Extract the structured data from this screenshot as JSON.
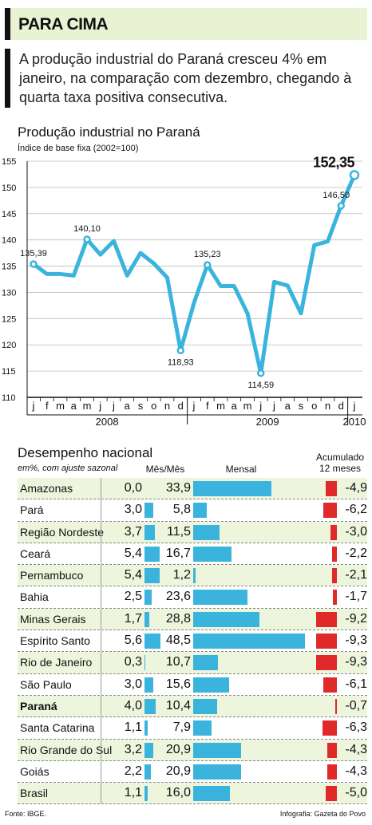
{
  "header": {
    "title": "PARA CIMA"
  },
  "intro": "A produção industrial do Paraná cresceu 4% em janeiro, na comparação com dezembro, chegando à quarta taxa positiva consecutiva.",
  "line_section": {
    "title": "Produção industrial no Paraná",
    "subtitle": "Índice de base fixa (2002=100)"
  },
  "colors": {
    "line": "#3ab4dd",
    "positive_bar": "#3ab4dd",
    "negative_bar": "#e02a2a",
    "header_bg": "#e9f2d2",
    "row_bg": "#eef5dd"
  },
  "chart_data": [
    {
      "type": "line",
      "title": "Produção industrial no Paraná",
      "ylabel": "Índice de base fixa (2002=100)",
      "ylim": [
        110,
        155
      ],
      "yticks": [
        110,
        115,
        120,
        125,
        130,
        135,
        140,
        145,
        150,
        155
      ],
      "grid": "horizontal",
      "x": [
        "j",
        "f",
        "m",
        "a",
        "m",
        "j",
        "j",
        "a",
        "s",
        "o",
        "n",
        "d",
        "j",
        "f",
        "m",
        "a",
        "m",
        "j",
        "j",
        "a",
        "s",
        "o",
        "n",
        "d",
        "j"
      ],
      "year_labels": [
        {
          "label": "2008",
          "index": 5.5
        },
        {
          "label": "2009",
          "index": 17.5
        },
        {
          "label": "2010",
          "index": 24
        }
      ],
      "values": [
        135.39,
        133.5,
        133.5,
        133.2,
        140.1,
        137.2,
        139.8,
        133.2,
        137.5,
        135.5,
        132.8,
        118.93,
        128.0,
        135.23,
        131.2,
        131.2,
        126.0,
        114.59,
        132.0,
        131.3,
        126.0,
        139.0,
        139.7,
        146.5,
        152.35
      ],
      "labels": [
        {
          "index": 0,
          "text": "135,39"
        },
        {
          "index": 4,
          "text": "140,10"
        },
        {
          "index": 11,
          "text": "118,93"
        },
        {
          "index": 13,
          "text": "135,23"
        },
        {
          "index": 17,
          "text": "114,59"
        },
        {
          "index": 23,
          "text": "146,50"
        },
        {
          "index": 24,
          "text": "152,35",
          "bold": true
        }
      ]
    },
    {
      "type": "table",
      "title": "Desempenho nacional",
      "subtitle": "em%, com ajuste sazonal",
      "columns": [
        "Mês/Mês",
        "Mensal",
        "Acumulado 12 meses"
      ],
      "rows": [
        {
          "state": "Amazonas",
          "mm": 0.0,
          "mm_label": "0,0",
          "mensal": 33.9,
          "mensal_label": "33,9",
          "acum": -4.9,
          "acum_label": "-4,9"
        },
        {
          "state": "Pará",
          "mm": 3.0,
          "mm_label": "3,0",
          "mensal": 5.8,
          "mensal_label": "5,8",
          "acum": -6.2,
          "acum_label": "-6,2"
        },
        {
          "state": "Região Nordeste",
          "mm": 3.7,
          "mm_label": "3,7",
          "mensal": 11.5,
          "mensal_label": "11,5",
          "acum": -3.0,
          "acum_label": "-3,0"
        },
        {
          "state": "Ceará",
          "mm": 5.4,
          "mm_label": "5,4",
          "mensal": 16.7,
          "mensal_label": "16,7",
          "acum": -2.2,
          "acum_label": "-2,2"
        },
        {
          "state": "Pernambuco",
          "mm": 5.4,
          "mm_label": "5,4",
          "mensal": 1.2,
          "mensal_label": "1,2",
          "acum": -2.1,
          "acum_label": "-2,1"
        },
        {
          "state": "Bahia",
          "mm": 2.5,
          "mm_label": "2,5",
          "mensal": 23.6,
          "mensal_label": "23,6",
          "acum": -1.7,
          "acum_label": "-1,7"
        },
        {
          "state": "Minas Gerais",
          "mm": 1.7,
          "mm_label": "1,7",
          "mensal": 28.8,
          "mensal_label": "28,8",
          "acum": -9.2,
          "acum_label": "-9,2"
        },
        {
          "state": "Espírito Santo",
          "mm": 5.6,
          "mm_label": "5,6",
          "mensal": 48.5,
          "mensal_label": "48,5",
          "acum": -9.3,
          "acum_label": "-9,3"
        },
        {
          "state": "Rio de Janeiro",
          "mm": 0.3,
          "mm_label": "0,3",
          "mensal": 10.7,
          "mensal_label": "10,7",
          "acum": -9.3,
          "acum_label": "-9,3"
        },
        {
          "state": "São Paulo",
          "mm": 3.0,
          "mm_label": "3,0",
          "mensal": 15.6,
          "mensal_label": "15,6",
          "acum": -6.1,
          "acum_label": "-6,1"
        },
        {
          "state": "Paraná",
          "mm": 4.0,
          "mm_label": "4,0",
          "mensal": 10.4,
          "mensal_label": "10,4",
          "acum": -0.7,
          "acum_label": "-0,7",
          "bold": true
        },
        {
          "state": "Santa Catarina",
          "mm": 1.1,
          "mm_label": "1,1",
          "mensal": 7.9,
          "mensal_label": "7,9",
          "acum": -6.3,
          "acum_label": "-6,3"
        },
        {
          "state": "Rio Grande do Sul",
          "mm": 3.2,
          "mm_label": "3,2",
          "mensal": 20.9,
          "mensal_label": "20,9",
          "acum": -4.3,
          "acum_label": "-4,3"
        },
        {
          "state": "Goiás",
          "mm": 2.2,
          "mm_label": "2,2",
          "mensal": 20.9,
          "mensal_label": "20,9",
          "acum": -4.3,
          "acum_label": "-4,3"
        },
        {
          "state": "Brasil",
          "mm": 1.1,
          "mm_label": "1,1",
          "mensal": 16.0,
          "mensal_label": "16,0",
          "acum": -5.0,
          "acum_label": "-5,0"
        }
      ]
    }
  ],
  "footer": {
    "source": "Fonte: IBGE.",
    "credit": "Infografia: Gazeta do Povo"
  }
}
